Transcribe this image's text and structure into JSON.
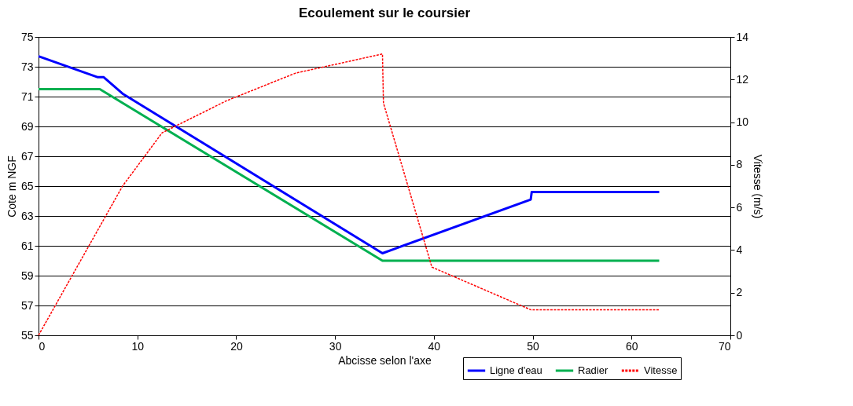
{
  "chart_data": {
    "type": "line",
    "title": "Ecoulement sur le coursier",
    "xlabel": "Abcisse selon l'axe",
    "ylabel": "Cote m NGF",
    "y2label": "Vitesse (m/s)",
    "xlim": [
      0,
      70
    ],
    "xticks": [
      0,
      10,
      20,
      30,
      40,
      50,
      60,
      70
    ],
    "ylim": [
      55,
      75
    ],
    "yticks": [
      55,
      57,
      59,
      61,
      63,
      65,
      67,
      69,
      71,
      73,
      75
    ],
    "y2lim": [
      0,
      14
    ],
    "y2ticks": [
      0,
      2,
      4,
      6,
      8,
      10,
      12,
      14
    ],
    "grid": "y",
    "legend": "bottom right",
    "marker": "none",
    "series": [
      {
        "name": "Ligne d'eau",
        "color": "#0000ff",
        "line_style": "solid",
        "x": [
          0,
          6,
          6.6,
          8.5,
          34.8,
          49.8,
          49.9,
          62.8
        ],
        "values": [
          73.7,
          72.3,
          72.3,
          71.2,
          60.5,
          64.1,
          64.6,
          64.6
        ]
      },
      {
        "name": "Radier",
        "color": "#00b050",
        "line_style": "solid",
        "x": [
          0,
          6.2,
          34.8,
          62.8
        ],
        "values": [
          71.5,
          71.5,
          60,
          60
        ]
      },
      {
        "name": "Vitesse",
        "color": "#ff0000",
        "line_style": "dashed",
        "axis": "y2",
        "x": [
          0,
          8.5,
          12.5,
          19,
          26,
          34.8,
          34.9,
          39.8,
          49.8,
          62.8
        ],
        "values": [
          0,
          7,
          9.5,
          11,
          12.3,
          13.2,
          10.9,
          3.2,
          1.2,
          1.2
        ]
      }
    ]
  }
}
